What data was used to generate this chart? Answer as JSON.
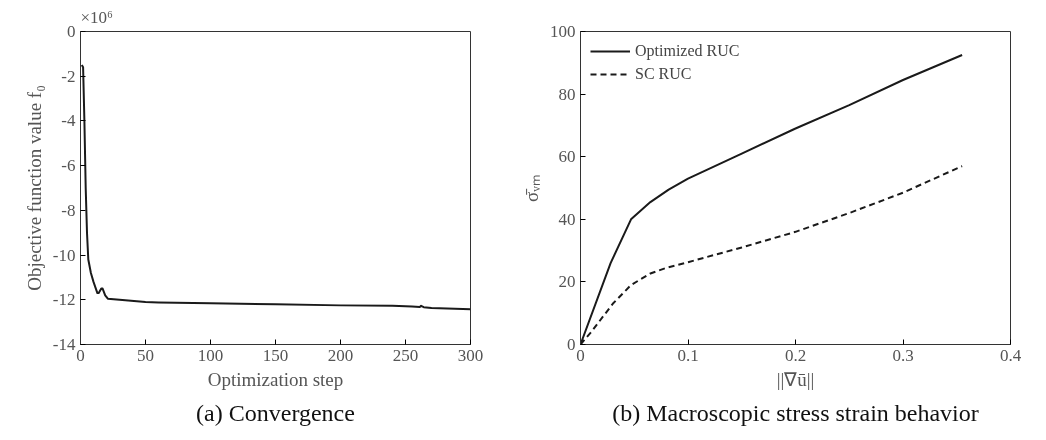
{
  "chart_data": [
    {
      "type": "line",
      "title": "(a) Convergence",
      "xlabel": "Optimization step",
      "ylabel": "Objective function value f₀",
      "annotations": [
        "×10⁶"
      ],
      "xlim": [
        0,
        300
      ],
      "ylim": [
        -14,
        0
      ],
      "xticks": [
        0,
        50,
        100,
        150,
        200,
        250,
        300
      ],
      "yticks": [
        -14,
        -12,
        -10,
        -8,
        -6,
        -4,
        -2,
        0
      ],
      "grid": false,
      "legend": false,
      "series": [
        {
          "color": "#1a1a1a",
          "line_style": "solid",
          "x": [
            1,
            2,
            3,
            4,
            5,
            6,
            8,
            10,
            13,
            14,
            16,
            17,
            19,
            21,
            30,
            50,
            60,
            100,
            150,
            200,
            240,
            255,
            261,
            262,
            264,
            270,
            300
          ],
          "values": [
            -1.5,
            -1.6,
            -4,
            -7,
            -9,
            -10.2,
            -10.8,
            -11.2,
            -11.7,
            -11.7,
            -11.5,
            -11.5,
            -11.8,
            -11.95,
            -12.0,
            -12.1,
            -12.12,
            -12.15,
            -12.2,
            -12.25,
            -12.27,
            -12.3,
            -12.32,
            -12.27,
            -12.33,
            -12.37,
            -12.42
          ]
        }
      ]
    },
    {
      "type": "line",
      "title": "(b) Macroscopic stress strain behavior",
      "xlabel": "||∇ū||",
      "ylabel": "σ̄ᵥₘ",
      "xlim": [
        0,
        0.4
      ],
      "ylim": [
        0,
        100
      ],
      "xticks": [
        0,
        0.1,
        0.2,
        0.3,
        0.4
      ],
      "yticks": [
        0,
        20,
        40,
        60,
        80,
        100
      ],
      "grid": false,
      "legend": "top left",
      "series": [
        {
          "name": "Optimized RUC",
          "color": "#1a1a1a",
          "line_style": "solid",
          "x": [
            0,
            0.028,
            0.047,
            0.065,
            0.082,
            0.1,
            0.15,
            0.2,
            0.25,
            0.3,
            0.355
          ],
          "values": [
            0,
            26,
            40,
            45.5,
            49.5,
            53,
            61,
            69,
            76.5,
            84.5,
            92.5
          ]
        },
        {
          "name": "SC RUC",
          "color": "#1a1a1a",
          "line_style": "dashed",
          "x": [
            0,
            0.01,
            0.03,
            0.047,
            0.065,
            0.08,
            0.1,
            0.15,
            0.2,
            0.25,
            0.3,
            0.355
          ],
          "values": [
            0,
            4,
            13,
            19,
            22.7,
            24.5,
            26.3,
            31,
            36,
            42,
            48.5,
            57
          ]
        }
      ]
    }
  ]
}
